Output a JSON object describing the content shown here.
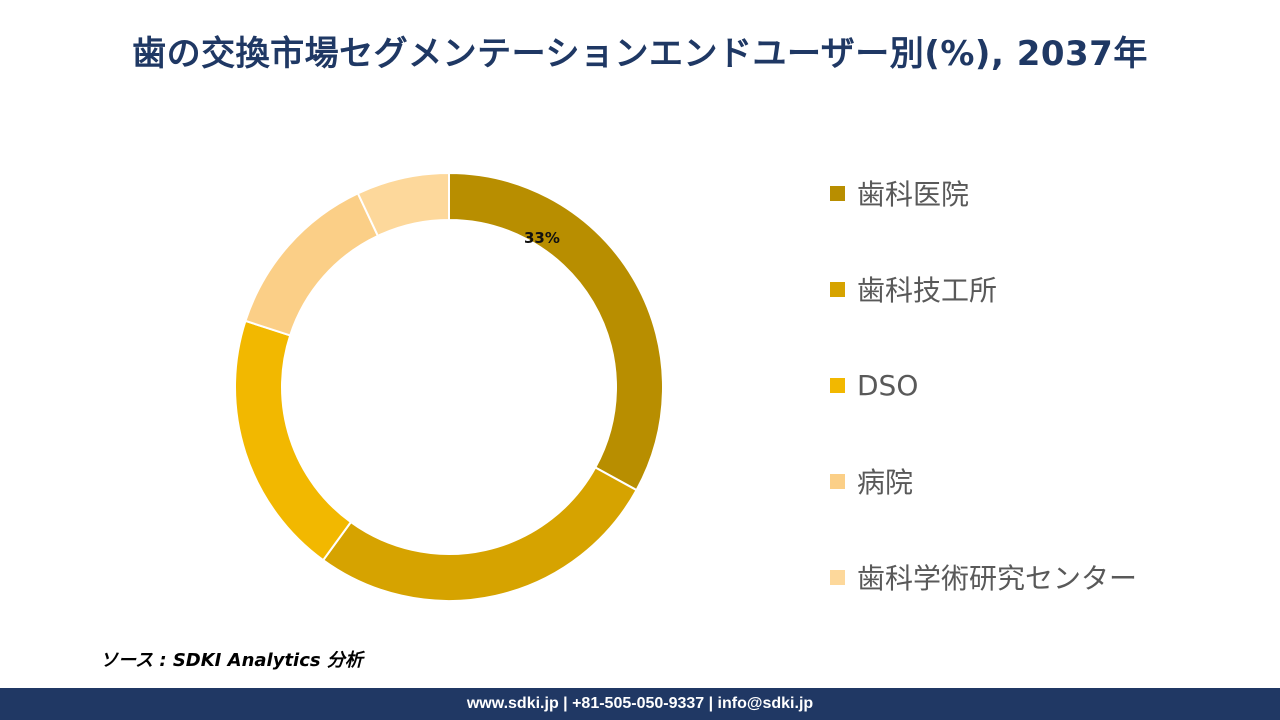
{
  "header": {
    "title": "歯の交換市場セグメンテーションエンドユーザー別(%), 2037年"
  },
  "chart_data": {
    "type": "pie",
    "categories": [
      "歯科医院",
      "歯科技工所",
      "DSO",
      "病院",
      "歯科学術研究センター"
    ],
    "values": [
      33,
      27,
      20,
      13,
      7
    ],
    "data_labels": [
      "33%",
      "",
      "",
      "",
      ""
    ],
    "colors": [
      "#b88e00",
      "#d6a300",
      "#f2b800",
      "#fbcf87",
      "#fdd89b"
    ],
    "donut": true,
    "legend": "right"
  },
  "source": {
    "text": "ソース : SDKI Analytics 分析"
  },
  "footer": {
    "text": "www.sdki.jp | +81-505-050-9337 | info@sdki.jp"
  }
}
